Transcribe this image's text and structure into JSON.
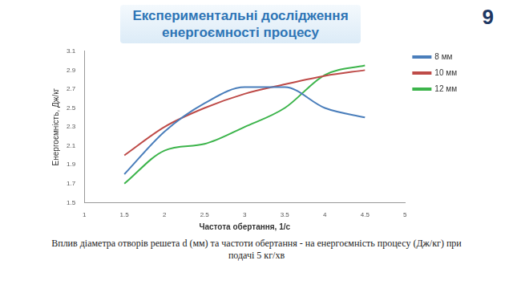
{
  "slide": {
    "title": [
      "Експериментальні дослідження",
      "енергоємності процесу"
    ],
    "number": "9",
    "caption": "Вплив діаметра отворів решета d (мм) та частоти обертання - на енергоємність процесу (Дж/кг) при подачі 5 кг/хв"
  },
  "chart_data": {
    "type": "line",
    "x_label": "Частота обертання, 1/с",
    "y_label": "Енергоємність, Дж/кг",
    "x": [
      1.5,
      2,
      2.5,
      3,
      3.5,
      4,
      4.5
    ],
    "series": [
      {
        "name": "8 мм",
        "color": "#4a7ebb",
        "values": [
          1.8,
          2.25,
          2.55,
          2.72,
          2.72,
          2.5,
          2.4
        ]
      },
      {
        "name": "10 мм",
        "color": "#be4b48",
        "values": [
          2.0,
          2.3,
          2.5,
          2.65,
          2.75,
          2.84,
          2.9
        ]
      },
      {
        "name": "12 мм",
        "color": "#3cb44b",
        "values": [
          1.7,
          2.05,
          2.12,
          2.3,
          2.5,
          2.85,
          2.95
        ]
      }
    ],
    "xlim": [
      1,
      5
    ],
    "xticks": [
      1,
      1.5,
      2,
      2.5,
      3,
      3.5,
      4,
      4.5,
      5
    ],
    "ylim": [
      1.5,
      3.1
    ],
    "yticks": [
      1.5,
      1.7,
      1.9,
      2.1,
      2.3,
      2.5,
      2.7,
      2.9,
      3.1
    ],
    "grid": false,
    "legend": "right"
  }
}
